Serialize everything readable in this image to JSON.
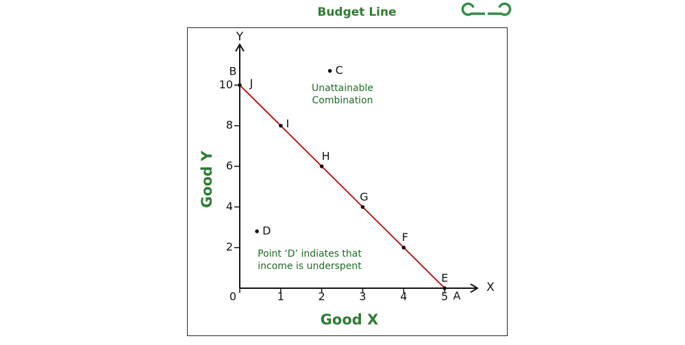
{
  "chart_data": {
    "type": "line",
    "title": "Budget Line",
    "x_label": "Good X",
    "y_label": "Good Y",
    "x_axis_symbol": "X",
    "y_axis_symbol": "Y",
    "x_intercept_label": "A",
    "y_intercept_label": "B",
    "x": [
      0,
      1,
      2,
      3,
      4,
      5
    ],
    "series": [
      {
        "color": "#c00000",
        "values": [
          10,
          8,
          6,
          4,
          2,
          0
        ],
        "point_labels": [
          "J",
          "I",
          "H",
          "G",
          "F",
          "E"
        ]
      }
    ],
    "points": [
      {
        "label": "C",
        "x": 2.2,
        "y": 10.7
      },
      {
        "label": "D",
        "x": 0.42,
        "y": 2.8
      }
    ],
    "annotations": [
      {
        "lines": [
          "Unattainable",
          "Combination"
        ]
      },
      {
        "lines": [
          "Point ‘D’ indiates that",
          "income is underspent"
        ]
      }
    ],
    "xlim": [
      0,
      5.8
    ],
    "ylim": [
      0,
      12
    ],
    "xticks": [
      0,
      1,
      2,
      3,
      4,
      5
    ],
    "yticks": [
      2,
      4,
      6,
      8,
      10
    ]
  }
}
